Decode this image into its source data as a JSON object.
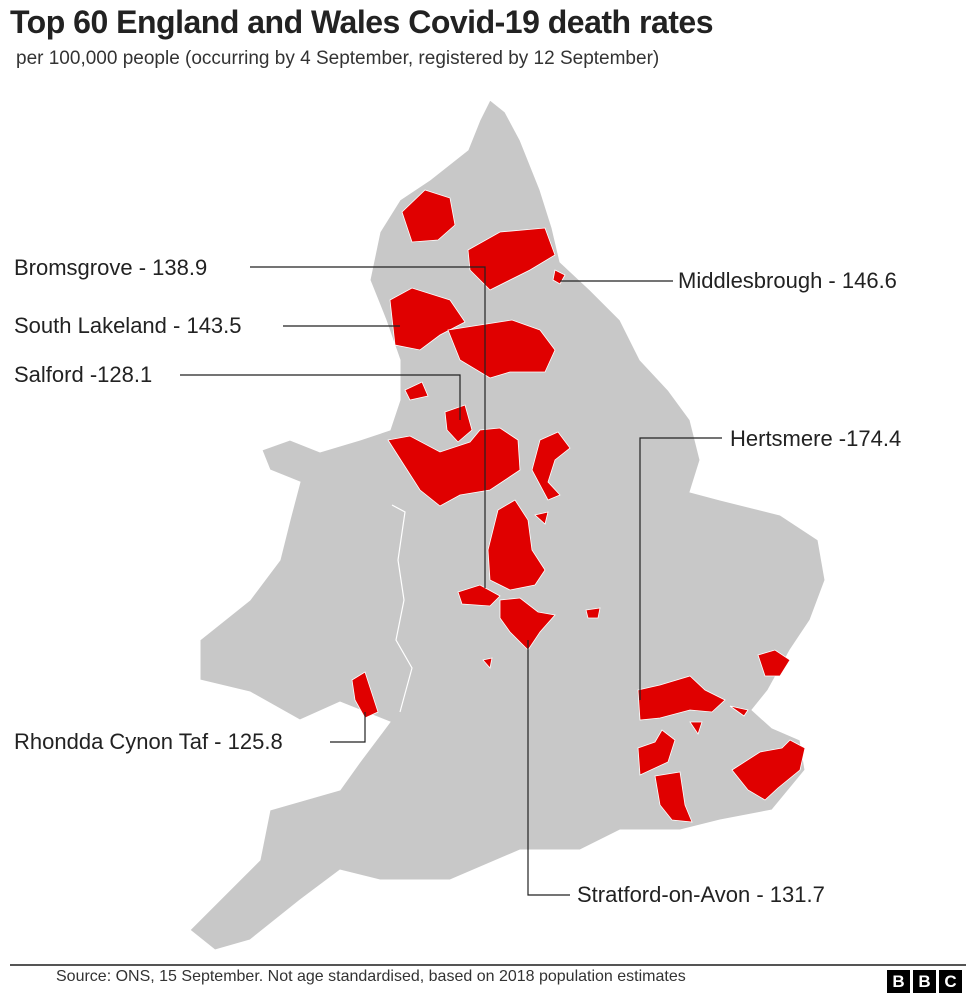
{
  "title": "Top 60 England and Wales Covid-19 death rates",
  "subtitle": "per 100,000 people (occurring by 4 September, registered by 12 September)",
  "colors": {
    "land": "#c8c8c8",
    "highlight": "#e00000",
    "line": "#222222"
  },
  "labels": [
    {
      "name": "Bromsgrove",
      "value": "138.9",
      "text": "Bromsgrove - 138.9"
    },
    {
      "name": "South Lakeland",
      "value": "143.5",
      "text": "South Lakeland - 143.5"
    },
    {
      "name": "Salford",
      "value": "128.1",
      "text": "Salford -128.1"
    },
    {
      "name": "Rhondda Cynon Taf",
      "value": "125.8",
      "text": "Rhondda Cynon Taf - 125.8"
    },
    {
      "name": "Middlesbrough",
      "value": "146.6",
      "text": "Middlesbrough - 146.6"
    },
    {
      "name": "Hertsmere",
      "value": "174.4",
      "text": "Hertsmere -174.4"
    },
    {
      "name": "Stratford-on-Avon",
      "value": "131.7",
      "text": "Stratford-on-Avon - 131.7"
    }
  ],
  "source": "Source: ONS, 15 September. Not age standardised, based on 2018 population estimates",
  "logo": [
    "B",
    "B",
    "C"
  ]
}
